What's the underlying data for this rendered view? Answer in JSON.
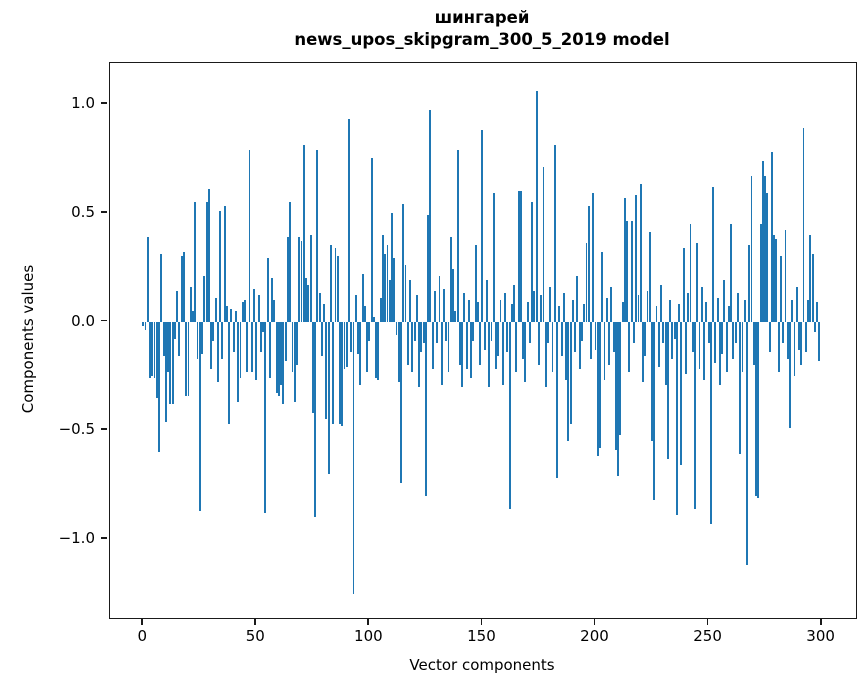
{
  "title": {
    "line1": "шингарей",
    "line2": "news_upos_skipgram_300_5_2019 model"
  },
  "axes": {
    "xlabel": "Vector components",
    "ylabel": "Components values"
  },
  "chart_data": {
    "type": "bar",
    "title": "шингарей",
    "subtitle": "news_upos_skipgram_300_5_2019 model",
    "xlabel": "Vector components",
    "ylabel": "Components values",
    "bar_color": "#1f77b4",
    "spine_color": "#1a1a1a",
    "grid": false,
    "legend": null,
    "xlim": [
      -14.7,
      315.2
    ],
    "ylim": [
      -1.362,
      1.188
    ],
    "x_tick_values": [
      0,
      50,
      100,
      150,
      200,
      250,
      300
    ],
    "x_tick_labels": [
      "0",
      "50",
      "100",
      "150",
      "200",
      "250",
      "300"
    ],
    "y_tick_values": [
      1.0,
      0.5,
      0.0,
      -0.5,
      -1.0
    ],
    "y_tick_labels": [
      "1.0",
      "0.5",
      "0.0",
      "−0.5",
      "−1.0"
    ],
    "x_description": "vector component index 0..299",
    "values": [
      -0.02,
      -0.04,
      0.39,
      -0.26,
      -0.25,
      -0.26,
      -0.35,
      -0.6,
      0.31,
      -0.16,
      -0.46,
      -0.23,
      -0.38,
      -0.38,
      -0.08,
      0.14,
      -0.16,
      0.3,
      0.32,
      -0.34,
      -0.34,
      0.16,
      0.05,
      0.55,
      -0.17,
      -0.87,
      -0.15,
      0.21,
      0.55,
      0.61,
      -0.22,
      -0.09,
      0.11,
      -0.28,
      0.51,
      -0.17,
      0.53,
      0.07,
      -0.47,
      0.06,
      -0.14,
      0.05,
      -0.37,
      -0.26,
      0.09,
      0.1,
      -0.23,
      0.79,
      -0.23,
      0.15,
      -0.27,
      0.12,
      -0.14,
      -0.05,
      -0.88,
      0.29,
      -0.26,
      0.2,
      0.1,
      -0.33,
      -0.34,
      -0.29,
      -0.38,
      -0.18,
      0.39,
      0.55,
      -0.23,
      -0.37,
      -0.2,
      0.39,
      0.37,
      0.81,
      0.2,
      0.17,
      0.4,
      -0.42,
      -0.9,
      0.79,
      0.13,
      -0.16,
      0.08,
      -0.45,
      -0.7,
      0.35,
      -0.47,
      0.34,
      0.3,
      -0.47,
      -0.48,
      -0.22,
      -0.21,
      0.93,
      -0.14,
      -1.25,
      0.12,
      -0.15,
      -0.29,
      0.22,
      0.07,
      -0.23,
      -0.09,
      0.75,
      0.02,
      -0.26,
      -0.27,
      0.11,
      0.4,
      0.31,
      0.35,
      0.19,
      0.5,
      0.29,
      -0.06,
      -0.28,
      -0.74,
      0.54,
      0.26,
      -0.2,
      0.19,
      -0.23,
      -0.09,
      0.12,
      -0.3,
      -0.14,
      -0.1,
      -0.8,
      0.49,
      0.97,
      -0.22,
      0.14,
      -0.1,
      0.21,
      -0.29,
      0.15,
      -0.09,
      -0.23,
      0.39,
      0.24,
      0.05,
      0.79,
      -0.2,
      -0.3,
      0.13,
      -0.22,
      0.1,
      -0.26,
      -0.09,
      0.35,
      0.09,
      -0.2,
      0.88,
      -0.13,
      0.19,
      -0.3,
      -0.09,
      0.59,
      -0.22,
      -0.16,
      0.1,
      -0.29,
      0.13,
      -0.14,
      -0.86,
      0.08,
      0.17,
      -0.23,
      0.6,
      0.6,
      -0.17,
      -0.28,
      0.09,
      -0.1,
      0.55,
      0.14,
      1.06,
      -0.2,
      0.12,
      0.71,
      -0.3,
      -0.1,
      0.16,
      -0.23,
      0.81,
      -0.72,
      0.07,
      -0.16,
      0.13,
      -0.27,
      -0.55,
      -0.47,
      0.1,
      -0.14,
      0.21,
      -0.22,
      -0.09,
      0.08,
      0.36,
      0.53,
      -0.17,
      0.59,
      -0.13,
      -0.62,
      -0.58,
      0.32,
      -0.27,
      0.11,
      -0.2,
      0.16,
      -0.14,
      -0.59,
      -0.71,
      -0.52,
      0.09,
      0.57,
      0.46,
      -0.23,
      0.46,
      -0.1,
      0.58,
      0.12,
      0.63,
      -0.28,
      -0.16,
      0.14,
      0.41,
      -0.55,
      -0.82,
      0.07,
      -0.21,
      0.17,
      -0.1,
      -0.29,
      -0.63,
      0.1,
      -0.17,
      -0.08,
      -0.89,
      0.08,
      -0.66,
      0.34,
      -0.24,
      0.13,
      0.45,
      -0.14,
      -0.86,
      0.36,
      -0.22,
      0.16,
      -0.27,
      0.09,
      -0.1,
      -0.93,
      0.62,
      -0.19,
      0.11,
      -0.29,
      -0.15,
      0.19,
      -0.23,
      0.07,
      0.45,
      -0.17,
      -0.1,
      0.13,
      -0.61,
      -0.23,
      0.1,
      -1.12,
      0.35,
      0.67,
      -0.2,
      -0.8,
      -0.81,
      0.45,
      0.74,
      0.67,
      0.59,
      -0.14,
      0.78,
      0.4,
      0.38,
      -0.23,
      0.3,
      -0.1,
      0.42,
      -0.17,
      -0.49,
      0.1,
      -0.25,
      0.16,
      -0.13,
      -0.2,
      0.89,
      -0.14,
      0.1,
      0.4,
      0.31,
      -0.05,
      0.09,
      -0.18
    ]
  }
}
